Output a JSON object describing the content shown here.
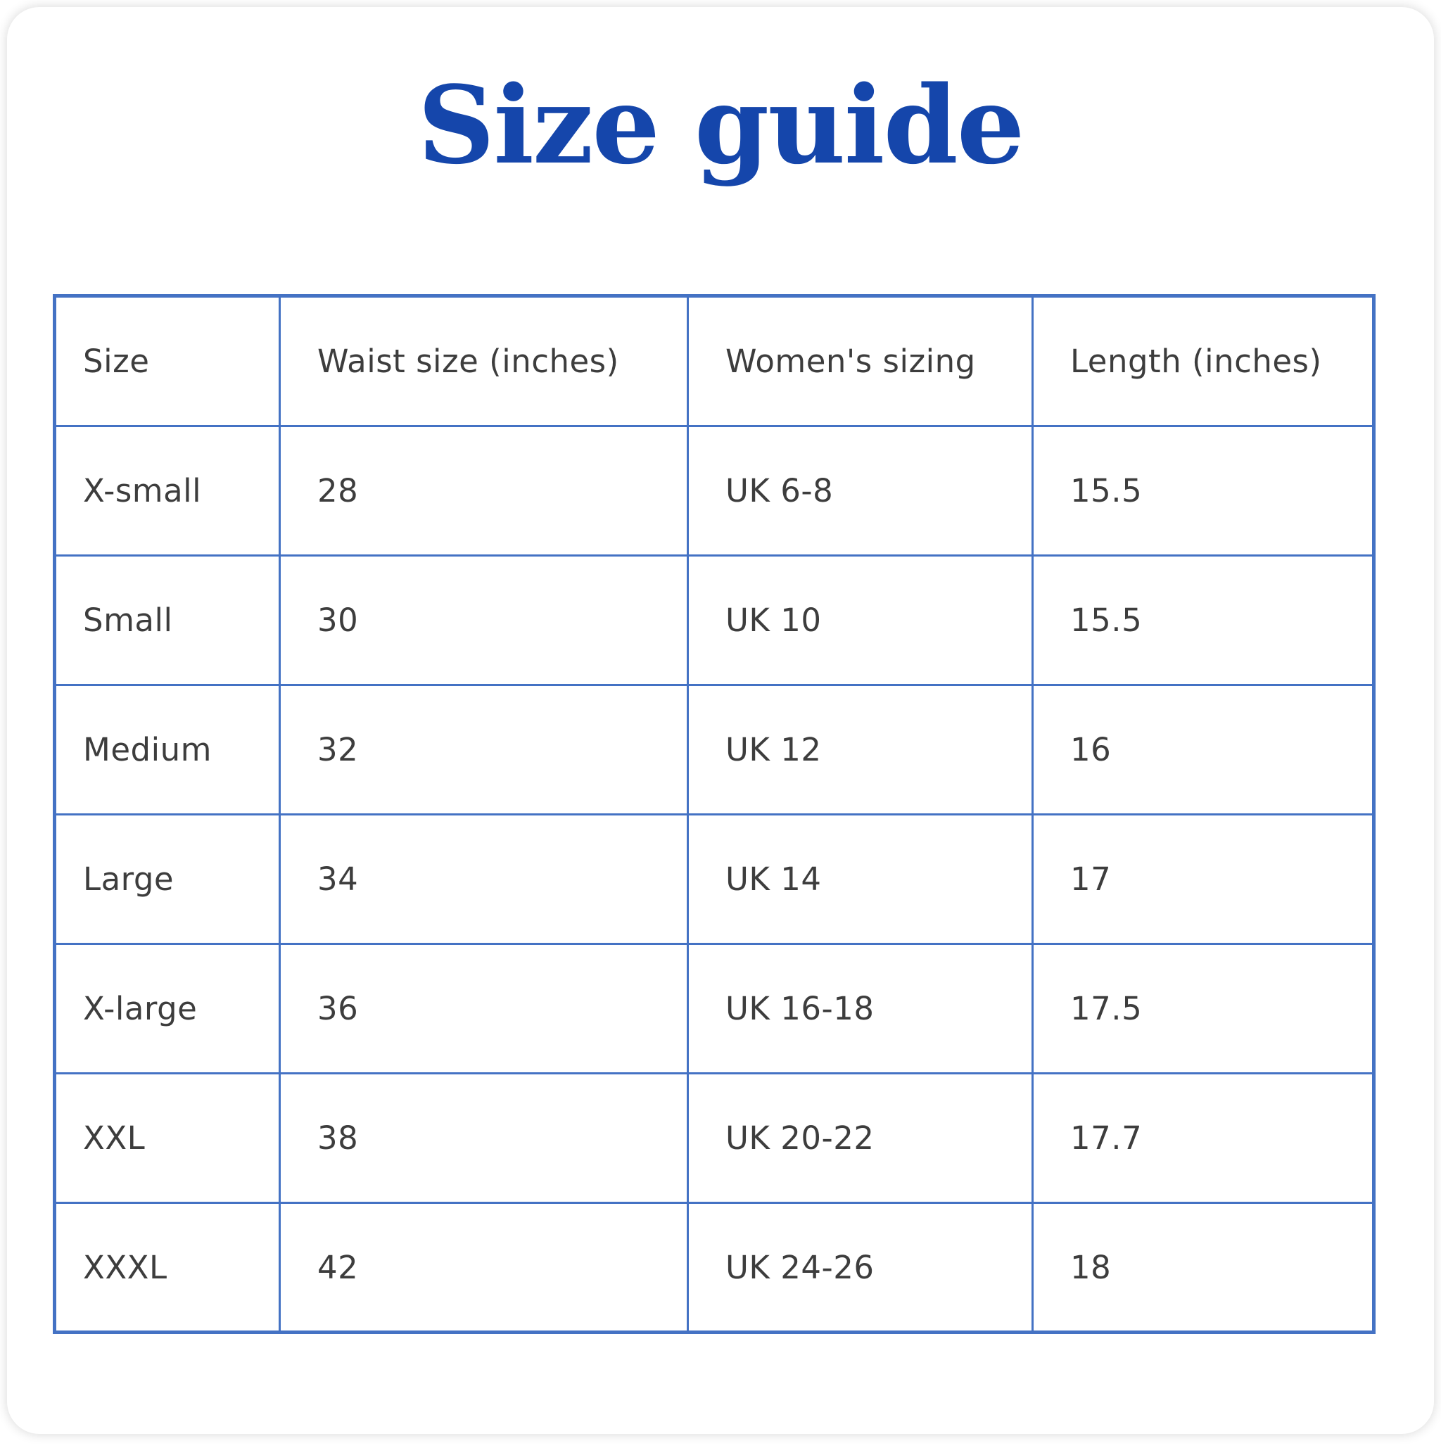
{
  "page": {
    "title": "Size guide"
  },
  "colors": {
    "title_blue": "#1546ab",
    "table_border_blue": "#4472c4",
    "cell_text": "#3d3d3d",
    "background": "#ffffff"
  },
  "table": {
    "columns": [
      "Size",
      "Waist size (inches)",
      "Women's sizing",
      "Length (inches)"
    ],
    "rows": [
      [
        "X-small",
        "28",
        "UK 6-8",
        "15.5"
      ],
      [
        "Small",
        "30",
        "UK 10",
        "15.5"
      ],
      [
        "Medium",
        "32",
        "UK 12",
        "16"
      ],
      [
        "Large",
        "34",
        "UK 14",
        "17"
      ],
      [
        "X-large",
        "36",
        "UK 16-18",
        "17.5"
      ],
      [
        "XXL",
        "38",
        "UK 20-22",
        "17.7"
      ],
      [
        "XXXL",
        "42",
        "UK 24-26",
        "18"
      ]
    ]
  }
}
